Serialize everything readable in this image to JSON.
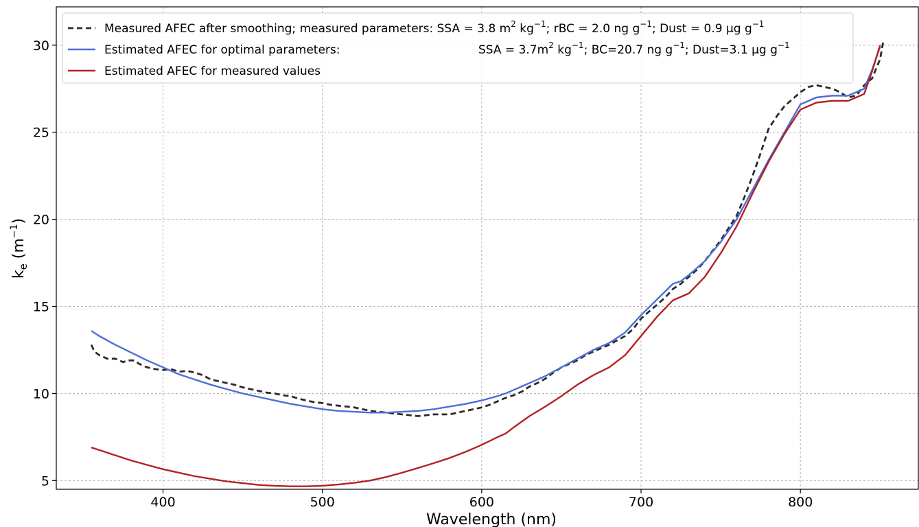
{
  "chart_data": {
    "type": "line",
    "xlabel": "Wavelength (nm)",
    "ylabel": "k",
    "ylabel_sub": "e",
    "ylabel_unit": " (m",
    "ylabel_unit_sup": "−1",
    "ylabel_close": ")",
    "xlim": [
      333,
      874
    ],
    "ylim": [
      4.5,
      32.2
    ],
    "xticks": [
      400,
      500,
      600,
      700,
      800
    ],
    "yticks": [
      5,
      10,
      15,
      20,
      25,
      30
    ],
    "grid": true,
    "legend_position": "top-left",
    "series": [
      {
        "key": "measured",
        "color": "#2b2b2b",
        "style": "dashed",
        "legend": {
          "prefix": "Measured AFEC after smoothing; measured parameters: SSA = 3.8 m",
          "sup1": "2",
          "mid1": " kg",
          "sup2": "−1",
          "mid2": "; rBC = 2.0 ng g",
          "sup3": "−1",
          "mid3": "; Dust = 0.9 μg g",
          "sup4": "−1"
        },
        "x": [
          355,
          357,
          360,
          365,
          370,
          375,
          378,
          382,
          385,
          390,
          395,
          400,
          405,
          410,
          415,
          420,
          425,
          430,
          435,
          440,
          445,
          450,
          455,
          460,
          465,
          470,
          475,
          480,
          485,
          490,
          495,
          500,
          505,
          510,
          515,
          520,
          525,
          530,
          535,
          540,
          545,
          550,
          555,
          560,
          565,
          570,
          575,
          580,
          585,
          590,
          595,
          600,
          605,
          610,
          615,
          620,
          625,
          630,
          635,
          640,
          645,
          650,
          655,
          660,
          665,
          670,
          675,
          680,
          685,
          690,
          695,
          700,
          705,
          710,
          715,
          720,
          725,
          730,
          735,
          740,
          745,
          750,
          755,
          760,
          765,
          770,
          775,
          780,
          785,
          790,
          795,
          800,
          805,
          810,
          815,
          820,
          825,
          830,
          835,
          840,
          845,
          850,
          852
        ],
        "y": [
          12.8,
          12.4,
          12.2,
          12.0,
          12.0,
          11.8,
          11.9,
          11.9,
          11.7,
          11.5,
          11.4,
          11.35,
          11.4,
          11.25,
          11.3,
          11.2,
          11.05,
          10.8,
          10.7,
          10.6,
          10.5,
          10.35,
          10.25,
          10.15,
          10.05,
          10.0,
          9.9,
          9.85,
          9.7,
          9.6,
          9.5,
          9.45,
          9.35,
          9.3,
          9.25,
          9.2,
          9.1,
          9.0,
          8.95,
          8.9,
          8.85,
          8.8,
          8.75,
          8.7,
          8.75,
          8.8,
          8.8,
          8.8,
          8.9,
          9.0,
          9.1,
          9.2,
          9.35,
          9.55,
          9.75,
          9.9,
          10.1,
          10.4,
          10.6,
          10.85,
          11.2,
          11.5,
          11.7,
          11.9,
          12.2,
          12.4,
          12.6,
          12.8,
          13.05,
          13.3,
          13.7,
          14.3,
          14.7,
          15.1,
          15.5,
          16.0,
          16.3,
          16.7,
          17.1,
          17.6,
          18.2,
          18.8,
          19.5,
          20.2,
          21.3,
          22.5,
          23.8,
          25.2,
          25.9,
          26.5,
          26.9,
          27.3,
          27.6,
          27.7,
          27.6,
          27.5,
          27.3,
          27.0,
          27.1,
          27.7,
          28.1,
          29.2,
          30.2
        ]
      },
      {
        "key": "optimal",
        "color": "#4b6fd6",
        "style": "solid",
        "legend": {
          "prefix": "Estimated AFEC for optimal parameters:",
          "suffix_a": "SSA = 3.7m",
          "sup1": "2",
          "mid1": " kg",
          "sup2": "−1",
          "mid2": "; BC=20.7 ng g",
          "sup3": "−1",
          "mid3": "; Dust=3.1 μg g",
          "sup4": "−1"
        },
        "x": [
          355,
          360,
          370,
          380,
          390,
          400,
          410,
          420,
          430,
          440,
          450,
          460,
          470,
          480,
          490,
          500,
          510,
          520,
          530,
          540,
          550,
          560,
          570,
          580,
          590,
          600,
          610,
          615,
          620,
          630,
          640,
          650,
          660,
          670,
          680,
          690,
          700,
          710,
          720,
          725,
          730,
          740,
          750,
          760,
          770,
          780,
          790,
          800,
          810,
          820,
          830,
          840,
          845,
          850
        ],
        "y": [
          13.6,
          13.3,
          12.8,
          12.35,
          11.9,
          11.5,
          11.1,
          10.8,
          10.5,
          10.25,
          10.0,
          9.8,
          9.6,
          9.4,
          9.25,
          9.1,
          9.0,
          8.95,
          8.9,
          8.9,
          8.95,
          9.0,
          9.1,
          9.25,
          9.4,
          9.6,
          9.85,
          10.0,
          10.2,
          10.6,
          11.0,
          11.5,
          12.0,
          12.5,
          12.9,
          13.5,
          14.5,
          15.4,
          16.3,
          16.45,
          16.8,
          17.6,
          18.7,
          20.0,
          21.7,
          23.4,
          25.0,
          26.6,
          27.0,
          27.1,
          27.1,
          27.5,
          28.6,
          29.9
        ]
      },
      {
        "key": "measured_values",
        "color": "#b22222",
        "style": "solid",
        "legend": {
          "prefix": "Estimated AFEC for measured values"
        },
        "x": [
          355,
          360,
          370,
          380,
          390,
          400,
          410,
          420,
          430,
          440,
          450,
          460,
          470,
          480,
          490,
          500,
          510,
          520,
          530,
          540,
          550,
          560,
          570,
          580,
          590,
          600,
          610,
          615,
          620,
          630,
          640,
          650,
          660,
          670,
          680,
          690,
          700,
          710,
          720,
          730,
          740,
          750,
          760,
          770,
          780,
          790,
          800,
          810,
          820,
          830,
          840,
          845,
          850
        ],
        "y": [
          6.9,
          6.75,
          6.45,
          6.15,
          5.9,
          5.65,
          5.45,
          5.25,
          5.1,
          4.95,
          4.85,
          4.75,
          4.7,
          4.67,
          4.67,
          4.7,
          4.77,
          4.87,
          5.0,
          5.2,
          5.45,
          5.72,
          6.0,
          6.3,
          6.65,
          7.05,
          7.5,
          7.7,
          8.05,
          8.7,
          9.25,
          9.85,
          10.5,
          11.05,
          11.5,
          12.2,
          13.3,
          14.4,
          15.35,
          15.75,
          16.7,
          18.05,
          19.6,
          21.5,
          23.3,
          24.9,
          26.3,
          26.7,
          26.8,
          26.8,
          27.2,
          28.5,
          30.0
        ]
      }
    ]
  }
}
